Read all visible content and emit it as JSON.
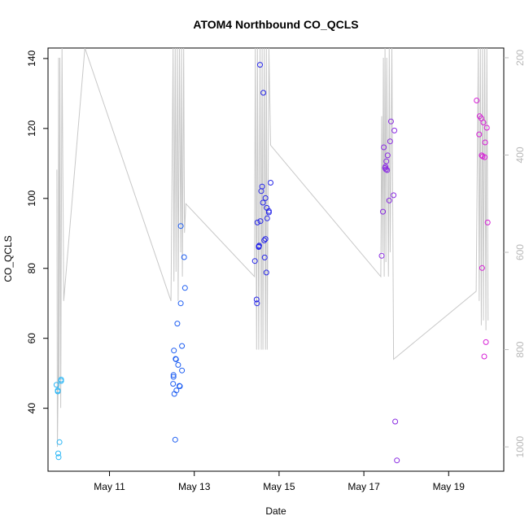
{
  "chart_data": {
    "type": "scatter",
    "title": "ATOM4 Northbound CO_QCLS",
    "xlabel": "Date",
    "ylabel": "CO_QCLS",
    "xlim": [
      9.55,
      20.3
    ],
    "ylim": [
      22,
      143
    ],
    "x_ticks": [
      11,
      13,
      15,
      17,
      19
    ],
    "x_tick_labels": [
      "May 11",
      "May 13",
      "May 15",
      "May 17",
      "May 19"
    ],
    "y_ticks": [
      40,
      60,
      80,
      100,
      120,
      140
    ],
    "y_tick_labels": [
      "40",
      "60",
      "80",
      "100",
      "120",
      "140"
    ],
    "secondary_axis": {
      "side": "right",
      "reversed": true,
      "ylim": [
        1050,
        180
      ],
      "ticks": [
        200,
        400,
        600,
        800,
        1000
      ],
      "tick_labels": [
        "200",
        "400",
        "600",
        "800",
        "1000"
      ],
      "color": "#bdbdbd"
    },
    "grid": false,
    "legend": "none",
    "series": [
      {
        "type": "points",
        "color": "#29b6f6",
        "points": [
          [
            9.75,
            46.7
          ],
          [
            9.78,
            45.1
          ],
          [
            9.78,
            44.8
          ],
          [
            9.79,
            27.1
          ],
          [
            9.8,
            26.0
          ],
          [
            9.82,
            30.3
          ],
          [
            9.86,
            47.8
          ],
          [
            9.86,
            48.2
          ]
        ]
      },
      {
        "type": "points",
        "color": "#1e5ef2",
        "points": [
          [
            12.5,
            47.0
          ],
          [
            12.51,
            49.0
          ],
          [
            12.51,
            49.5
          ],
          [
            12.52,
            56.5
          ],
          [
            12.53,
            44.1
          ],
          [
            12.55,
            31.0
          ],
          [
            12.56,
            54.1
          ],
          [
            12.57,
            54.0
          ],
          [
            12.58,
            45.1
          ],
          [
            12.6,
            64.2
          ],
          [
            12.62,
            52.4
          ],
          [
            12.65,
            46.4
          ],
          [
            12.66,
            46.3
          ],
          [
            12.68,
            70.0
          ],
          [
            12.68,
            92.1
          ],
          [
            12.71,
            57.8
          ],
          [
            12.71,
            50.8
          ],
          [
            12.76,
            83.2
          ],
          [
            12.78,
            74.4
          ]
        ]
      },
      {
        "type": "points",
        "color": "#2626e8",
        "points": [
          [
            14.43,
            82.1
          ],
          [
            14.47,
            71.1
          ],
          [
            14.48,
            70.0
          ],
          [
            14.49,
            93.1
          ],
          [
            14.52,
            86.3
          ],
          [
            14.52,
            86.1
          ],
          [
            14.53,
            86.5
          ],
          [
            14.55,
            138.2
          ],
          [
            14.56,
            93.5
          ],
          [
            14.58,
            102.1
          ],
          [
            14.6,
            103.4
          ],
          [
            14.62,
            98.8
          ],
          [
            14.63,
            130.2
          ],
          [
            14.65,
            88.0
          ],
          [
            14.66,
            83.1
          ],
          [
            14.68,
            100.1
          ],
          [
            14.68,
            88.4
          ],
          [
            14.7,
            78.8
          ],
          [
            14.71,
            97.3
          ],
          [
            14.72,
            94.3
          ],
          [
            14.76,
            96.0
          ],
          [
            14.76,
            96.4
          ],
          [
            14.8,
            104.5
          ]
        ]
      },
      {
        "type": "points",
        "color": "#8a2be2",
        "points": [
          [
            17.42,
            83.6
          ],
          [
            17.45,
            96.2
          ],
          [
            17.47,
            114.6
          ],
          [
            17.5,
            108.7
          ],
          [
            17.51,
            109.1
          ],
          [
            17.52,
            108.3
          ],
          [
            17.53,
            110.6
          ],
          [
            17.55,
            108.1
          ],
          [
            17.56,
            112.3
          ],
          [
            17.6,
            99.4
          ],
          [
            17.62,
            116.3
          ],
          [
            17.64,
            122.0
          ],
          [
            17.7,
            100.9
          ],
          [
            17.72,
            119.4
          ],
          [
            17.74,
            36.2
          ],
          [
            17.78,
            25.1
          ]
        ]
      },
      {
        "type": "points",
        "color": "#d61fd6",
        "points": [
          [
            19.66,
            128.0
          ],
          [
            19.72,
            118.3
          ],
          [
            19.73,
            123.5
          ],
          [
            19.77,
            122.9
          ],
          [
            19.78,
            112.3
          ],
          [
            19.79,
            80.1
          ],
          [
            19.8,
            112.0
          ],
          [
            19.82,
            121.7
          ],
          [
            19.84,
            54.8
          ],
          [
            19.85,
            111.8
          ],
          [
            19.86,
            116.0
          ],
          [
            19.88,
            58.9
          ],
          [
            19.9,
            120.2
          ],
          [
            19.92,
            93.1
          ]
        ]
      },
      {
        "type": "line",
        "axis": "right",
        "color": "#c8c8c8",
        "points": [
          [
            9.76,
            430
          ],
          [
            9.77,
            1000
          ],
          [
            9.79,
            860
          ],
          [
            9.8,
            200
          ],
          [
            9.81,
            880
          ],
          [
            9.83,
            200
          ],
          [
            9.85,
            920
          ],
          [
            9.88,
            180
          ],
          [
            9.92,
            700
          ],
          [
            10.42,
            180
          ],
          [
            12.45,
            700
          ],
          [
            12.5,
            180
          ],
          [
            12.52,
            660
          ],
          [
            12.55,
            180
          ],
          [
            12.57,
            640
          ],
          [
            12.6,
            180
          ],
          [
            12.62,
            700
          ],
          [
            12.65,
            180
          ],
          [
            12.68,
            600
          ],
          [
            12.7,
            180
          ],
          [
            12.72,
            650
          ],
          [
            12.75,
            180
          ],
          [
            12.77,
            560
          ],
          [
            12.8,
            500
          ],
          [
            14.42,
            650
          ],
          [
            14.44,
            180
          ],
          [
            14.47,
            800
          ],
          [
            14.49,
            180
          ],
          [
            14.52,
            800
          ],
          [
            14.55,
            180
          ],
          [
            14.58,
            800
          ],
          [
            14.6,
            180
          ],
          [
            14.62,
            800
          ],
          [
            14.65,
            180
          ],
          [
            14.68,
            800
          ],
          [
            14.7,
            180
          ],
          [
            14.72,
            800
          ],
          [
            14.76,
            180
          ],
          [
            14.8,
            380
          ],
          [
            17.4,
            650
          ],
          [
            17.42,
            320
          ],
          [
            17.44,
            600
          ],
          [
            17.46,
            200
          ],
          [
            17.48,
            650
          ],
          [
            17.5,
            180
          ],
          [
            17.52,
            620
          ],
          [
            17.54,
            200
          ],
          [
            17.58,
            650
          ],
          [
            17.6,
            180
          ],
          [
            17.62,
            600
          ],
          [
            17.66,
            180
          ],
          [
            17.7,
            820
          ],
          [
            19.65,
            680
          ],
          [
            19.7,
            180
          ],
          [
            19.72,
            700
          ],
          [
            19.75,
            180
          ],
          [
            19.77,
            750
          ],
          [
            19.8,
            180
          ],
          [
            19.82,
            740
          ],
          [
            19.85,
            180
          ],
          [
            19.88,
            760
          ],
          [
            19.9,
            180
          ],
          [
            19.93,
            740
          ]
        ]
      }
    ]
  }
}
